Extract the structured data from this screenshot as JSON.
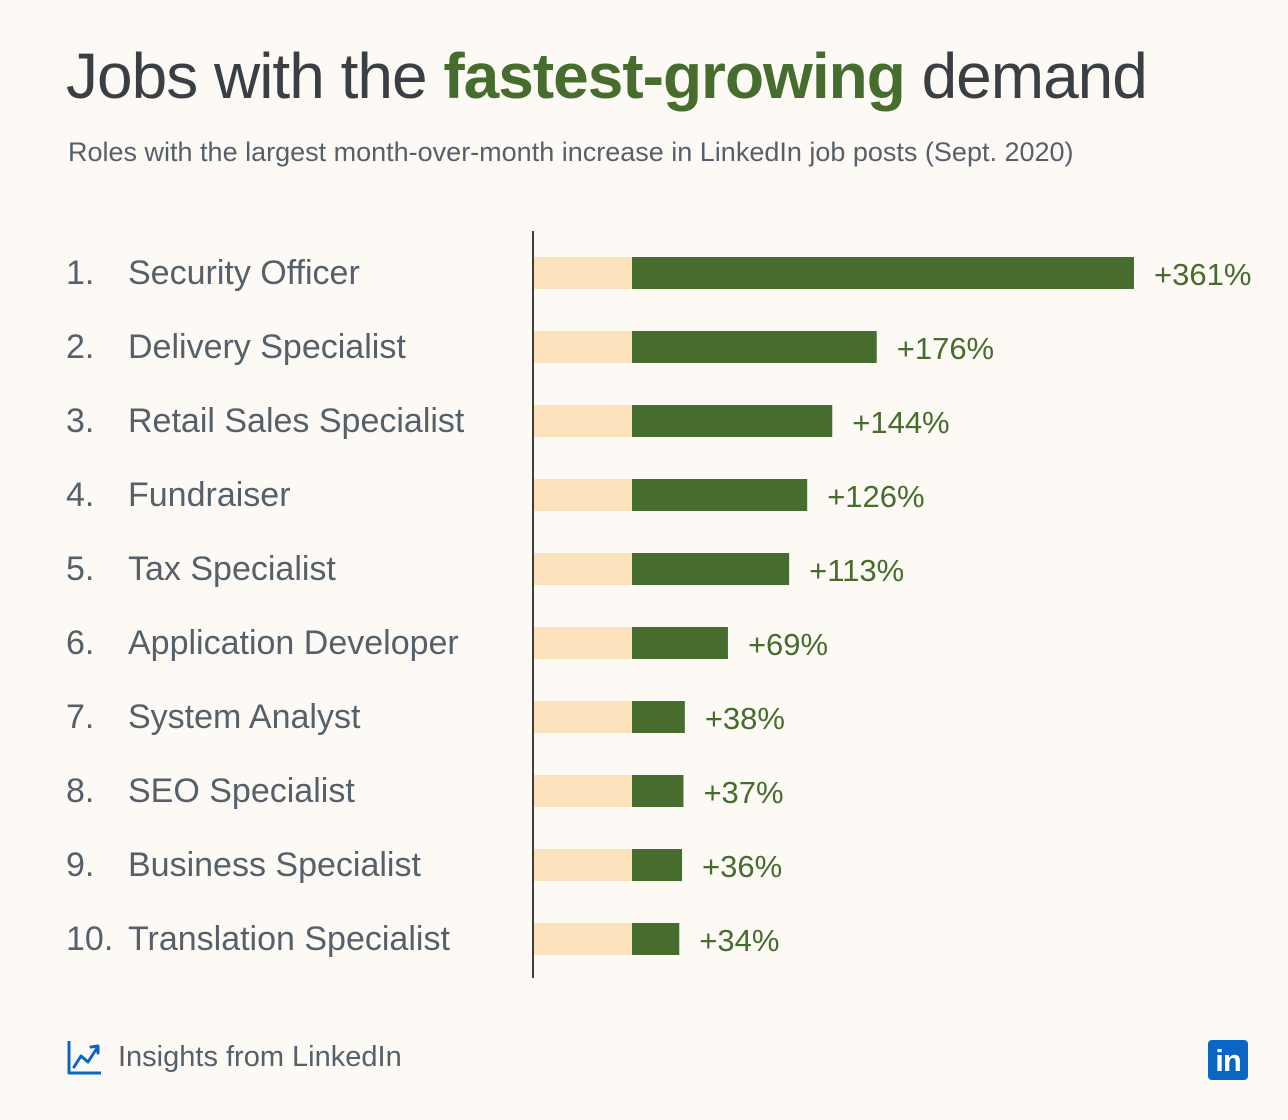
{
  "header": {
    "title_before": "Jobs with the ",
    "title_highlight": "fastest-growing",
    "title_after": " demand",
    "subtitle": "Roles with the largest month-over-month increase in LinkedIn job posts (Sept. 2020)"
  },
  "footer": {
    "text": "Insights from LinkedIn",
    "logo_text": "in"
  },
  "colors": {
    "bar": "#476d2e",
    "bar_base": "#fbe2bd",
    "value_label": "#476d2e",
    "axis": "#3d3d3d"
  },
  "chart_data": {
    "type": "bar",
    "orientation": "horizontal",
    "title": "Jobs with the fastest-growing demand",
    "subtitle": "Roles with the largest month-over-month increase in LinkedIn job posts (Sept. 2020)",
    "ranks": [
      "1.",
      "2.",
      "3.",
      "4.",
      "5.",
      "6.",
      "7.",
      "8.",
      "9.",
      "10."
    ],
    "categories": [
      "Security Officer",
      "Delivery Specialist",
      "Retail Sales Specialist",
      "Fundraiser",
      "Tax Specialist",
      "Application Developer",
      "System Analyst",
      "SEO Specialist",
      "Business Specialist",
      "Translation Specialist"
    ],
    "values": [
      361,
      176,
      144,
      126,
      113,
      69,
      38,
      37,
      36,
      34
    ],
    "value_labels": [
      "+361%",
      "+176%",
      "+144%",
      "+126%",
      "+113%",
      "+69%",
      "+38%",
      "+37%",
      "+36%",
      "+34%"
    ],
    "unit": "%",
    "grid": false,
    "legend": "none"
  }
}
